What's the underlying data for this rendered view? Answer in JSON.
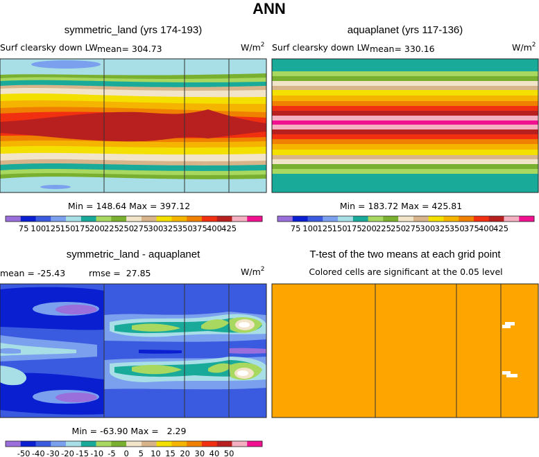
{
  "page": {
    "title": "ANN"
  },
  "chart_data": [
    {
      "type": "heatmap",
      "title": "symmetric_land (yrs 174-193)",
      "variable": "Surf clearsky down LW",
      "mean_label": "mean= 304.73",
      "units": "W/m",
      "units_sup": "2",
      "stats": "Min = 148.64 Max = 397.12",
      "colorbar": {
        "colors": [
          "#9a6fdc",
          "#0a1fd0",
          "#3a5ae0",
          "#7aa0ee",
          "#a8dfe6",
          "#1aaa9a",
          "#a8d860",
          "#7ab030",
          "#f2e4c8",
          "#d8b48a",
          "#f4e000",
          "#f4b400",
          "#f08000",
          "#f03010",
          "#b82020",
          "#f4b0c0",
          "#f01090"
        ],
        "labels": [
          "75",
          "100",
          "125",
          "150",
          "175",
          "200",
          "225",
          "250",
          "275",
          "300",
          "325",
          "350",
          "375",
          "400",
          "425"
        ]
      }
    },
    {
      "type": "heatmap",
      "title": "aquaplanet (yrs 117-136)",
      "variable": "Surf clearsky down LW",
      "mean_label": "mean= 330.16",
      "units": "W/m",
      "units_sup": "2",
      "stats": "Min = 183.72 Max = 425.81",
      "colorbar": {
        "colors": [
          "#9a6fdc",
          "#0a1fd0",
          "#3a5ae0",
          "#7aa0ee",
          "#a8dfe6",
          "#1aaa9a",
          "#a8d860",
          "#7ab030",
          "#f2e4c8",
          "#d8b48a",
          "#f4e000",
          "#f4b400",
          "#f08000",
          "#f03010",
          "#b82020",
          "#f4b0c0",
          "#f01090"
        ],
        "labels": [
          "75",
          "100",
          "125",
          "150",
          "175",
          "200",
          "225",
          "250",
          "275",
          "300",
          "325",
          "350",
          "375",
          "400",
          "425"
        ]
      }
    },
    {
      "type": "heatmap",
      "title": "symmetric_land - aquaplanet",
      "mean_label": "mean = -25.43",
      "rmse_label": "rmse =  27.85",
      "units": "W/m",
      "units_sup": "2",
      "stats": "Min = -63.90 Max =   2.29",
      "colorbar": {
        "colors": [
          "#9a6fdc",
          "#0a1fd0",
          "#3a5ae0",
          "#7aa0ee",
          "#a8dfe6",
          "#1aaa9a",
          "#a8d860",
          "#7ab030",
          "#f2e4c8",
          "#d8b48a",
          "#f4e000",
          "#f4b400",
          "#f08000",
          "#f03010",
          "#b82020",
          "#f4b0c0",
          "#f01090"
        ],
        "labels": [
          "-50",
          "-40",
          "-30",
          "-20",
          "-15",
          "-10",
          "-5",
          "0",
          "5",
          "10",
          "15",
          "20",
          "30",
          "40",
          "50"
        ]
      }
    },
    {
      "type": "heatmap",
      "title": "T-test of the two means at each grid point",
      "subtitle": "Colored cells are significant at the 0.05 level",
      "fill_color": "#ffa500"
    }
  ]
}
